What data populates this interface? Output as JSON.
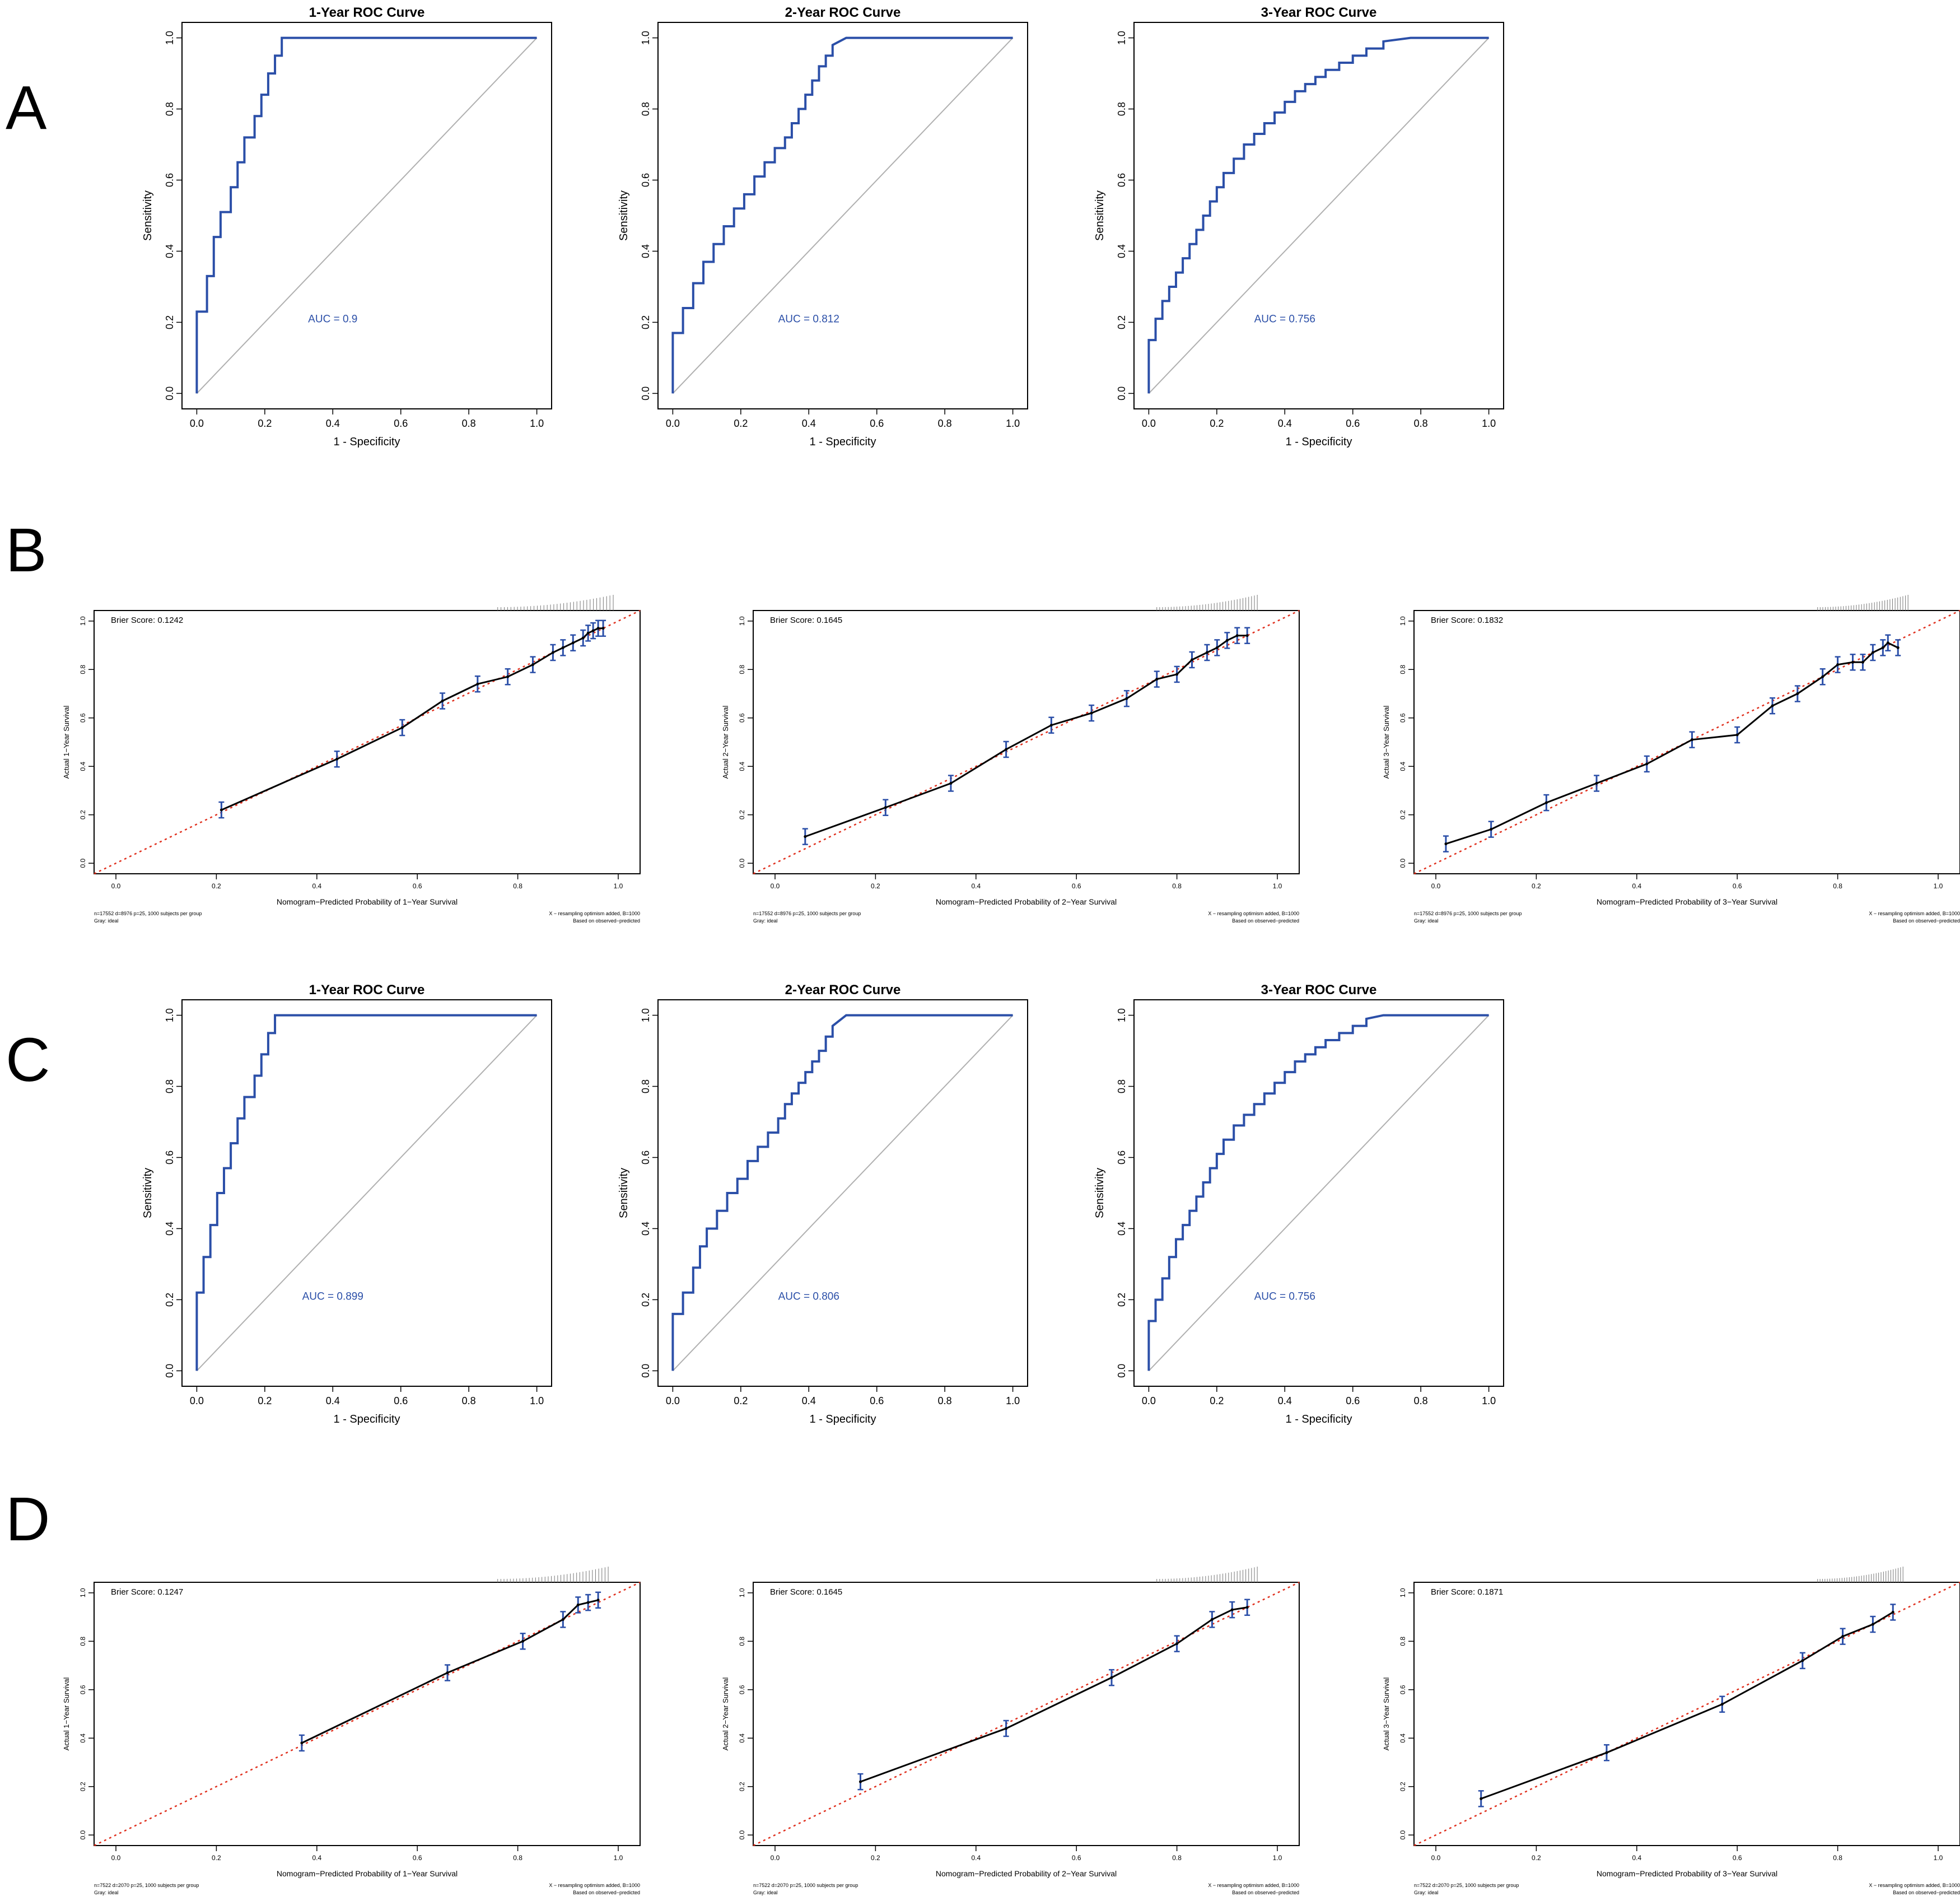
{
  "panel_letters": [
    "A",
    "B",
    "C",
    "D"
  ],
  "chart_data": [
    {
      "id": "A1",
      "panel": "A",
      "type": "line",
      "subtype": "roc",
      "title": "1-Year ROC Curve",
      "xlabel": "1 - Specificity",
      "ylabel": "Sensitivity",
      "xlim": [
        0,
        1
      ],
      "ylim": [
        0,
        1
      ],
      "ticks": [
        "0.0",
        "0.2",
        "0.4",
        "0.6",
        "0.8",
        "1.0"
      ],
      "auc_label": "AUC = 0.9",
      "auc_pos": [
        0.4,
        0.2
      ],
      "series": [
        {
          "x": [
            0,
            0,
            0.03,
            0.03,
            0.05,
            0.05,
            0.07,
            0.07,
            0.1,
            0.1,
            0.12,
            0.12,
            0.14,
            0.14,
            0.17,
            0.17,
            0.19,
            0.19,
            0.21,
            0.21,
            0.23,
            0.23,
            0.25,
            0.25,
            0.27,
            1.0
          ],
          "y": [
            0,
            0.23,
            0.23,
            0.33,
            0.33,
            0.44,
            0.44,
            0.51,
            0.51,
            0.58,
            0.58,
            0.65,
            0.65,
            0.72,
            0.72,
            0.78,
            0.78,
            0.84,
            0.84,
            0.9,
            0.9,
            0.95,
            0.95,
            1.0,
            1.0,
            1.0
          ]
        }
      ]
    },
    {
      "id": "A2",
      "panel": "A",
      "type": "line",
      "subtype": "roc",
      "title": "2-Year ROC Curve",
      "xlabel": "1 - Specificity",
      "ylabel": "Sensitivity",
      "xlim": [
        0,
        1
      ],
      "ylim": [
        0,
        1
      ],
      "ticks": [
        "0.0",
        "0.2",
        "0.4",
        "0.6",
        "0.8",
        "1.0"
      ],
      "auc_label": "AUC = 0.812",
      "auc_pos": [
        0.4,
        0.2
      ],
      "series": [
        {
          "x": [
            0,
            0,
            0.03,
            0.03,
            0.06,
            0.06,
            0.09,
            0.09,
            0.12,
            0.12,
            0.15,
            0.15,
            0.18,
            0.18,
            0.21,
            0.21,
            0.24,
            0.24,
            0.27,
            0.27,
            0.3,
            0.3,
            0.33,
            0.33,
            0.35,
            0.35,
            0.37,
            0.37,
            0.39,
            0.39,
            0.41,
            0.41,
            0.43,
            0.43,
            0.45,
            0.45,
            0.47,
            0.47,
            0.51,
            1.0
          ],
          "y": [
            0,
            0.17,
            0.17,
            0.24,
            0.24,
            0.31,
            0.31,
            0.37,
            0.37,
            0.42,
            0.42,
            0.47,
            0.47,
            0.52,
            0.52,
            0.56,
            0.56,
            0.61,
            0.61,
            0.65,
            0.65,
            0.69,
            0.69,
            0.72,
            0.72,
            0.76,
            0.76,
            0.8,
            0.8,
            0.84,
            0.84,
            0.88,
            0.88,
            0.92,
            0.92,
            0.95,
            0.95,
            0.98,
            1.0,
            1.0
          ]
        }
      ]
    },
    {
      "id": "A3",
      "panel": "A",
      "type": "line",
      "subtype": "roc",
      "title": "3-Year ROC Curve",
      "xlabel": "1 - Specificity",
      "ylabel": "Sensitivity",
      "xlim": [
        0,
        1
      ],
      "ylim": [
        0,
        1
      ],
      "ticks": [
        "0.0",
        "0.2",
        "0.4",
        "0.6",
        "0.8",
        "1.0"
      ],
      "auc_label": "AUC = 0.756",
      "auc_pos": [
        0.4,
        0.2
      ],
      "series": [
        {
          "x": [
            0,
            0,
            0.02,
            0.02,
            0.04,
            0.04,
            0.06,
            0.06,
            0.08,
            0.08,
            0.1,
            0.1,
            0.12,
            0.12,
            0.14,
            0.14,
            0.16,
            0.16,
            0.18,
            0.18,
            0.2,
            0.2,
            0.22,
            0.22,
            0.25,
            0.25,
            0.28,
            0.28,
            0.31,
            0.31,
            0.34,
            0.34,
            0.37,
            0.37,
            0.4,
            0.4,
            0.43,
            0.43,
            0.46,
            0.46,
            0.49,
            0.49,
            0.52,
            0.52,
            0.56,
            0.56,
            0.6,
            0.6,
            0.64,
            0.64,
            0.69,
            0.69,
            0.77,
            1.0
          ],
          "y": [
            0,
            0.15,
            0.15,
            0.21,
            0.21,
            0.26,
            0.26,
            0.3,
            0.3,
            0.34,
            0.34,
            0.38,
            0.38,
            0.42,
            0.42,
            0.46,
            0.46,
            0.5,
            0.5,
            0.54,
            0.54,
            0.58,
            0.58,
            0.62,
            0.62,
            0.66,
            0.66,
            0.7,
            0.7,
            0.73,
            0.73,
            0.76,
            0.76,
            0.79,
            0.79,
            0.82,
            0.82,
            0.85,
            0.85,
            0.87,
            0.87,
            0.89,
            0.89,
            0.91,
            0.91,
            0.93,
            0.93,
            0.95,
            0.95,
            0.97,
            0.97,
            0.99,
            1.0,
            1.0
          ]
        }
      ]
    },
    {
      "id": "B1",
      "panel": "B",
      "type": "line",
      "subtype": "calibration",
      "brier": "Brier Score: 0.1242",
      "xlabel": "Nomogram−Predicted Probability of 1−Year Survival",
      "ylabel": "Actual 1−Year Survival",
      "xlim": [
        0,
        1
      ],
      "ylim": [
        0,
        1
      ],
      "ticks": [
        "0.0",
        "0.2",
        "0.4",
        "0.6",
        "0.8",
        "1.0"
      ],
      "footnote_left": [
        "n=17552 d=8976 p=25, 1000 subjects per group",
        "Gray: ideal"
      ],
      "footnote_right": [
        "X − resampling optimism added, B=1000",
        "Based on observed−predicted"
      ],
      "x": [
        0.21,
        0.44,
        0.57,
        0.65,
        0.72,
        0.78,
        0.83,
        0.87,
        0.89,
        0.91,
        0.93,
        0.94,
        0.95,
        0.96,
        0.97
      ],
      "y": [
        0.22,
        0.43,
        0.56,
        0.67,
        0.74,
        0.77,
        0.82,
        0.87,
        0.89,
        0.91,
        0.93,
        0.95,
        0.96,
        0.97,
        0.97
      ]
    },
    {
      "id": "B2",
      "panel": "B",
      "type": "line",
      "subtype": "calibration",
      "brier": "Brier Score: 0.1645",
      "xlabel": "Nomogram−Predicted Probability of 2−Year Survival",
      "ylabel": "Actual 2−Year Survival",
      "xlim": [
        0,
        1
      ],
      "ylim": [
        0,
        1
      ],
      "ticks": [
        "0.0",
        "0.2",
        "0.4",
        "0.6",
        "0.8",
        "1.0"
      ],
      "footnote_left": [
        "n=17552 d=8976 p=25, 1000 subjects per group",
        "Gray: ideal"
      ],
      "footnote_right": [
        "X − resampling optimism added, B=1000",
        "Based on observed−predicted"
      ],
      "x": [
        0.06,
        0.22,
        0.35,
        0.46,
        0.55,
        0.63,
        0.7,
        0.76,
        0.8,
        0.83,
        0.86,
        0.88,
        0.9,
        0.92,
        0.94
      ],
      "y": [
        0.11,
        0.23,
        0.33,
        0.47,
        0.57,
        0.62,
        0.68,
        0.76,
        0.78,
        0.84,
        0.87,
        0.89,
        0.92,
        0.94,
        0.94
      ]
    },
    {
      "id": "B3",
      "panel": "B",
      "type": "line",
      "subtype": "calibration",
      "brier": "Brier Score: 0.1832",
      "xlabel": "Nomogram−Predicted Probability of 3−Year Survival",
      "ylabel": "Actual 3−Year Survival",
      "xlim": [
        0,
        1
      ],
      "ylim": [
        0,
        1
      ],
      "ticks": [
        "0.0",
        "0.2",
        "0.4",
        "0.6",
        "0.8",
        "1.0"
      ],
      "footnote_left": [
        "n=17552 d=8976 p=25, 1000 subjects per group",
        "Gray: ideal"
      ],
      "footnote_right": [
        "X − resampling optimism added, B=1000",
        "Based on observed−predicted"
      ],
      "x": [
        0.02,
        0.11,
        0.22,
        0.32,
        0.42,
        0.51,
        0.6,
        0.67,
        0.72,
        0.77,
        0.8,
        0.83,
        0.85,
        0.87,
        0.89,
        0.9,
        0.92
      ],
      "y": [
        0.08,
        0.14,
        0.25,
        0.33,
        0.41,
        0.51,
        0.53,
        0.65,
        0.7,
        0.77,
        0.82,
        0.83,
        0.83,
        0.87,
        0.89,
        0.91,
        0.89
      ]
    },
    {
      "id": "C1",
      "panel": "C",
      "type": "line",
      "subtype": "roc",
      "title": "1-Year ROC Curve",
      "xlabel": "1 - Specificity",
      "ylabel": "Sensitivity",
      "xlim": [
        0,
        1
      ],
      "ylim": [
        0,
        1
      ],
      "ticks": [
        "0.0",
        "0.2",
        "0.4",
        "0.6",
        "0.8",
        "1.0"
      ],
      "auc_label": "AUC = 0.899",
      "auc_pos": [
        0.4,
        0.2
      ],
      "series": [
        {
          "x": [
            0,
            0,
            0.02,
            0.02,
            0.04,
            0.04,
            0.06,
            0.06,
            0.08,
            0.08,
            0.1,
            0.1,
            0.12,
            0.12,
            0.14,
            0.14,
            0.17,
            0.17,
            0.19,
            0.19,
            0.21,
            0.21,
            0.23,
            0.23,
            0.25,
            0.25,
            0.26,
            1.0
          ],
          "y": [
            0,
            0.22,
            0.22,
            0.32,
            0.32,
            0.41,
            0.41,
            0.5,
            0.5,
            0.57,
            0.57,
            0.64,
            0.64,
            0.71,
            0.71,
            0.77,
            0.77,
            0.83,
            0.83,
            0.89,
            0.89,
            0.95,
            0.95,
            1.0,
            1.0,
            1.0,
            1.0,
            1.0
          ]
        }
      ]
    },
    {
      "id": "C2",
      "panel": "C",
      "type": "line",
      "subtype": "roc",
      "title": "2-Year ROC Curve",
      "xlabel": "1 - Specificity",
      "ylabel": "Sensitivity",
      "xlim": [
        0,
        1
      ],
      "ylim": [
        0,
        1
      ],
      "ticks": [
        "0.0",
        "0.2",
        "0.4",
        "0.6",
        "0.8",
        "1.0"
      ],
      "auc_label": "AUC = 0.806",
      "auc_pos": [
        0.4,
        0.2
      ],
      "series": [
        {
          "x": [
            0,
            0,
            0.03,
            0.03,
            0.06,
            0.06,
            0.08,
            0.08,
            0.1,
            0.1,
            0.13,
            0.13,
            0.16,
            0.16,
            0.19,
            0.19,
            0.22,
            0.22,
            0.25,
            0.25,
            0.28,
            0.28,
            0.31,
            0.31,
            0.33,
            0.33,
            0.35,
            0.35,
            0.37,
            0.37,
            0.39,
            0.39,
            0.41,
            0.41,
            0.43,
            0.43,
            0.45,
            0.45,
            0.47,
            0.47,
            0.51,
            1.0
          ],
          "y": [
            0,
            0.16,
            0.16,
            0.22,
            0.22,
            0.29,
            0.29,
            0.35,
            0.35,
            0.4,
            0.4,
            0.45,
            0.45,
            0.5,
            0.5,
            0.54,
            0.54,
            0.59,
            0.59,
            0.63,
            0.63,
            0.67,
            0.67,
            0.71,
            0.71,
            0.75,
            0.75,
            0.78,
            0.78,
            0.81,
            0.81,
            0.84,
            0.84,
            0.87,
            0.87,
            0.9,
            0.9,
            0.94,
            0.94,
            0.97,
            1.0,
            1.0
          ]
        }
      ]
    },
    {
      "id": "C3",
      "panel": "C",
      "type": "line",
      "subtype": "roc",
      "title": "3-Year ROC Curve",
      "xlabel": "1 - Specificity",
      "ylabel": "Sensitivity",
      "xlim": [
        0,
        1
      ],
      "ylim": [
        0,
        1
      ],
      "ticks": [
        "0.0",
        "0.2",
        "0.4",
        "0.6",
        "0.8",
        "1.0"
      ],
      "auc_label": "AUC = 0.756",
      "auc_pos": [
        0.4,
        0.2
      ],
      "series": [
        {
          "x": [
            0,
            0,
            0.02,
            0.02,
            0.04,
            0.04,
            0.06,
            0.06,
            0.08,
            0.08,
            0.1,
            0.1,
            0.12,
            0.12,
            0.14,
            0.14,
            0.16,
            0.16,
            0.18,
            0.18,
            0.2,
            0.2,
            0.22,
            0.22,
            0.25,
            0.25,
            0.28,
            0.28,
            0.31,
            0.31,
            0.34,
            0.34,
            0.37,
            0.37,
            0.4,
            0.4,
            0.43,
            0.43,
            0.46,
            0.46,
            0.49,
            0.49,
            0.52,
            0.52,
            0.56,
            0.56,
            0.6,
            0.6,
            0.64,
            0.64,
            0.69,
            0.69,
            0.77,
            1.0
          ],
          "y": [
            0,
            0.14,
            0.14,
            0.2,
            0.2,
            0.26,
            0.26,
            0.32,
            0.32,
            0.37,
            0.37,
            0.41,
            0.41,
            0.45,
            0.45,
            0.49,
            0.49,
            0.53,
            0.53,
            0.57,
            0.57,
            0.61,
            0.61,
            0.65,
            0.65,
            0.69,
            0.69,
            0.72,
            0.72,
            0.75,
            0.75,
            0.78,
            0.78,
            0.81,
            0.81,
            0.84,
            0.84,
            0.87,
            0.87,
            0.89,
            0.89,
            0.91,
            0.91,
            0.93,
            0.93,
            0.95,
            0.95,
            0.97,
            0.97,
            0.99,
            1.0,
            1.0,
            1.0,
            1.0
          ]
        }
      ]
    },
    {
      "id": "D1",
      "panel": "D",
      "type": "line",
      "subtype": "calibration",
      "brier": "Brier Score: 0.1247",
      "xlabel": "Nomogram−Predicted Probability of 1−Year Survival",
      "ylabel": "Actual 1−Year Survival",
      "xlim": [
        0,
        1
      ],
      "ylim": [
        0,
        1
      ],
      "ticks": [
        "0.0",
        "0.2",
        "0.4",
        "0.6",
        "0.8",
        "1.0"
      ],
      "footnote_left": [
        "n=7522 d=2070 p=25, 1000 subjects per group",
        "Gray: ideal"
      ],
      "footnote_right": [
        "X − resampling optimism added, B=1000",
        "Based on observed−predicted"
      ],
      "x": [
        0.37,
        0.66,
        0.81,
        0.89,
        0.92,
        0.94,
        0.96
      ],
      "y": [
        0.38,
        0.67,
        0.8,
        0.89,
        0.95,
        0.96,
        0.97
      ]
    },
    {
      "id": "D2",
      "panel": "D",
      "type": "line",
      "subtype": "calibration",
      "brier": "Brier Score: 0.1645",
      "xlabel": "Nomogram−Predicted Probability of 2−Year Survival",
      "ylabel": "Actual 2−Year Survival",
      "xlim": [
        0,
        1
      ],
      "ylim": [
        0,
        1
      ],
      "ticks": [
        "0.0",
        "0.2",
        "0.4",
        "0.6",
        "0.8",
        "1.0"
      ],
      "footnote_left": [
        "n=7522 d=2070 p=25, 1000 subjects per group",
        "Gray: ideal"
      ],
      "footnote_right": [
        "X − resampling optimism added, B=1000",
        "Based on observed−predicted"
      ],
      "x": [
        0.17,
        0.46,
        0.67,
        0.8,
        0.87,
        0.91,
        0.94
      ],
      "y": [
        0.22,
        0.44,
        0.65,
        0.79,
        0.89,
        0.93,
        0.94
      ]
    },
    {
      "id": "D3",
      "panel": "D",
      "type": "line",
      "subtype": "calibration",
      "brier": "Brier Score: 0.1871",
      "xlabel": "Nomogram−Predicted Probability of 3−Year Survival",
      "ylabel": "Actual 3−Year Survival",
      "xlim": [
        0,
        1
      ],
      "ylim": [
        0,
        1
      ],
      "ticks": [
        "0.0",
        "0.2",
        "0.4",
        "0.6",
        "0.8",
        "1.0"
      ],
      "footnote_left": [
        "n=7522 d=2070 p=25, 1000 subjects per group",
        "Gray: ideal"
      ],
      "footnote_right": [
        "X − resampling optimism added, B=1000",
        "Based on observed−predicted"
      ],
      "x": [
        0.09,
        0.34,
        0.57,
        0.73,
        0.81,
        0.87,
        0.91
      ],
      "y": [
        0.15,
        0.34,
        0.54,
        0.72,
        0.82,
        0.87,
        0.92
      ]
    }
  ],
  "colors": {
    "roc_curve": "#2b4fa8",
    "calibration_line": "#000000",
    "error_bar": "#2b4fa8",
    "ideal_line": "#e0301e",
    "diagonal": "#b0b0b0",
    "auc_text": "#2b4fa8",
    "axis": "#000000"
  }
}
